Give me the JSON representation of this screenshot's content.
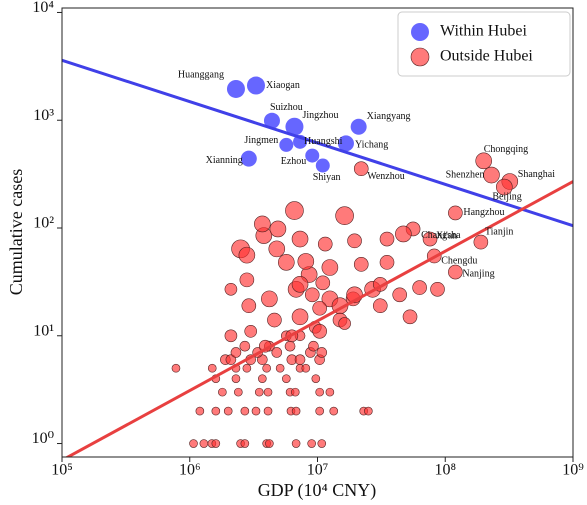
{
  "chart_data": {
    "type": "scatter",
    "log_x": true,
    "log_y": true,
    "x_label": "GDP (10⁴ CNY)",
    "y_label": "Cumulative cases",
    "xlim": [
      100000,
      1000000000
    ],
    "ylim": [
      0.75,
      11000
    ],
    "xticks": [
      {
        "value": 100000,
        "label": "10⁵"
      },
      {
        "value": 1000000,
        "label": "10⁶"
      },
      {
        "value": 10000000,
        "label": "10⁷"
      },
      {
        "value": 100000000,
        "label": "10⁸"
      },
      {
        "value": 1000000000,
        "label": "10⁹"
      }
    ],
    "yticks": [
      {
        "value": 1,
        "label": "10⁰"
      },
      {
        "value": 10,
        "label": "10¹"
      },
      {
        "value": 100,
        "label": "10²"
      },
      {
        "value": 1000,
        "label": "10³"
      },
      {
        "value": 10000,
        "label": "10⁴"
      }
    ],
    "legend": "upper right",
    "series": [
      {
        "name": "Within Hubei",
        "color": "#4b4bff",
        "x": [
          2300000,
          3300000,
          4400000,
          6600000,
          21000000,
          5700000,
          7300000,
          16700000,
          2900000,
          9100000,
          11000000
        ],
        "values": [
          1950,
          2100,
          990,
          870,
          870,
          590,
          630,
          610,
          440,
          470,
          380
        ],
        "sizes": [
          9,
          9,
          8,
          9,
          8,
          7,
          7,
          8,
          8,
          7,
          7
        ],
        "labels": [
          "Huanggang",
          "Xiaogan",
          "Suizhou",
          "Jingzhou",
          "Xiangyang",
          "Jingmen",
          "Huangshi",
          "Yichang",
          "Xianning",
          "Ezhou",
          "Shiyan"
        ]
      },
      {
        "name": "Outside Hubei",
        "color": "#ff3333",
        "x": [
          22000000,
          200000000,
          230000000,
          320000000,
          290000000,
          120000000,
          56000000,
          76000000,
          190000000,
          82000000,
          120000000,
          1070000,
          1290000,
          1490000,
          1600000,
          2500000,
          2700000,
          4000000,
          4200000,
          6800000,
          9000000,
          10800000,
          1200000,
          1600000,
          2000000,
          2700000,
          3300000,
          4100000,
          6200000,
          6800000,
          10400000,
          13400000,
          23000000,
          25000000,
          1800000,
          2400000,
          3500000,
          4100000,
          6100000,
          6700000,
          10400000,
          12500000,
          1600000,
          2300000,
          3700000,
          5700000,
          9700000,
          780000,
          1500000,
          2300000,
          2800000,
          4000000,
          5100000,
          7300000,
          8100000,
          1900000,
          2100000,
          3000000,
          3700000,
          6300000,
          7300000,
          10400000,
          2300000,
          3400000,
          4800000,
          8800000,
          10800000,
          2700000,
          4200000,
          6100000,
          9300000,
          5700000,
          7300000,
          6600000,
          16300000,
          2500000,
          3800000,
          2800000,
          4800000,
          7300000,
          5700000,
          8600000,
          12500000,
          22000000,
          35000000,
          27000000,
          19000000,
          12500000,
          6800000,
          4200000,
          2900000,
          4600000,
          7300000,
          10400000,
          15000000,
          19500000,
          31000000,
          44000000,
          53000000,
          63000000,
          87000000,
          47000000,
          35000000,
          19500000,
          11500000,
          4900000,
          3700000,
          8100000,
          9600000,
          2100000,
          3000000,
          3900000,
          6300000,
          10400000,
          15000000,
          2100000,
          2800000,
          31000000,
          16300000,
          7300000,
          9100000,
          11000000
        ],
        "values": [
          355,
          420,
          310,
          270,
          240,
          138,
          98,
          79,
          74,
          55,
          39,
          1,
          1,
          1,
          1,
          1,
          1,
          1,
          1,
          1,
          1,
          1,
          2,
          2,
          2,
          2,
          2,
          2,
          2,
          2,
          2,
          2,
          2,
          2,
          3,
          3,
          3,
          3,
          3,
          3,
          3,
          3,
          4,
          4,
          4,
          4,
          4,
          5,
          5,
          5,
          5,
          5,
          5,
          5,
          5,
          6,
          6,
          6,
          6,
          6,
          6,
          6,
          7,
          7,
          7,
          7,
          7,
          8,
          8,
          8,
          8,
          10,
          10,
          145,
          130,
          64,
          85,
          56,
          64,
          79,
          48,
          37,
          43,
          46,
          48,
          27,
          22,
          22,
          27,
          22,
          19,
          14,
          15,
          18,
          19,
          24,
          30,
          24,
          15,
          28,
          27,
          88,
          79,
          76,
          71,
          98,
          109,
          49,
          12,
          10,
          11,
          8,
          10,
          11,
          14,
          27,
          33,
          19,
          13,
          30,
          24,
          31
        ],
        "sizes": [
          7,
          8,
          8,
          8,
          8,
          7,
          7,
          7,
          7,
          7,
          7,
          4,
          4,
          4,
          4,
          4,
          4,
          4,
          4,
          4,
          4,
          4,
          4,
          4,
          4,
          4,
          4,
          4,
          4,
          4,
          4,
          4,
          4,
          4,
          4,
          4,
          4,
          4,
          4,
          4,
          4,
          4,
          4,
          4,
          4,
          4,
          4,
          4,
          4,
          4,
          4,
          4,
          4,
          4,
          4,
          5,
          5,
          5,
          5,
          5,
          5,
          5,
          5,
          5,
          5,
          5,
          5,
          5,
          5,
          5,
          5,
          5,
          5,
          9,
          9,
          9,
          8,
          8,
          8,
          8,
          8,
          8,
          8,
          7,
          7,
          8,
          7,
          8,
          8,
          8,
          7,
          7,
          8,
          7,
          8,
          8,
          7,
          7,
          7,
          7,
          7,
          8,
          7,
          7,
          7,
          8,
          8,
          8,
          6,
          6,
          6,
          6,
          6,
          7,
          7,
          6,
          7,
          7,
          6,
          8,
          7,
          7
        ],
        "labels": [
          "Wenzhou",
          "Chongqing",
          "Shenzhen",
          "Shanghai",
          "Beijing",
          "Hangzhou",
          "Changsha",
          "Xi'an",
          "Tianjin",
          "Chengdu",
          "Nanjing"
        ]
      }
    ],
    "fit_lines": [
      {
        "color": "#4040e8",
        "x": [
          100000,
          1000000000
        ],
        "values": [
          3600,
          105
        ]
      },
      {
        "color": "#e84040",
        "x": [
          100000,
          1000000000
        ],
        "values": [
          0.7,
          270
        ]
      }
    ]
  }
}
